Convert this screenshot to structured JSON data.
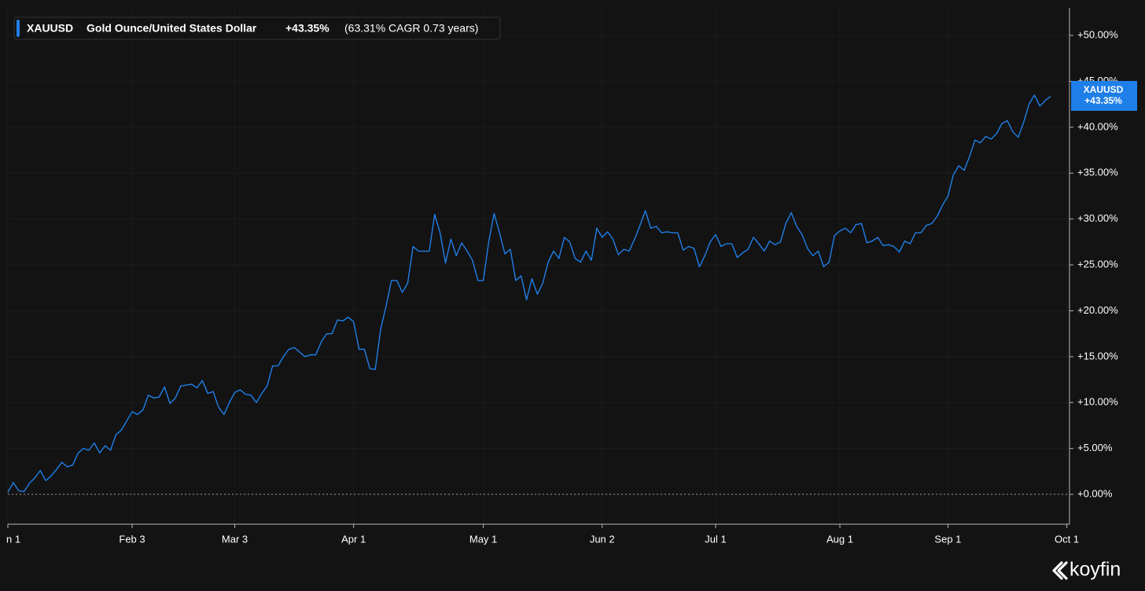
{
  "chart_data": {
    "type": "line",
    "series": [
      {
        "name": "XAUUSD",
        "description": "Gold Ounce/United States Dollar",
        "change_label": "+43.35%",
        "cagr_label": "(63.31% CAGR 0.73 years)",
        "color": "#1f7fe8",
        "values": [
          0.2,
          1.3,
          0.4,
          0.3,
          1.2,
          1.8,
          2.6,
          1.5,
          2.0,
          2.7,
          3.5,
          3.0,
          3.2,
          4.5,
          5.0,
          4.8,
          5.6,
          4.5,
          5.3,
          4.8,
          6.5,
          7.0,
          8.0,
          9.0,
          8.7,
          9.2,
          10.8,
          10.5,
          10.6,
          11.7,
          9.9,
          10.5,
          11.8,
          11.9,
          12.0,
          11.6,
          12.4,
          11.0,
          11.2,
          9.5,
          8.7,
          10.0,
          11.1,
          11.4,
          10.9,
          10.8,
          10.0,
          11.0,
          11.8,
          14.0,
          14.0,
          15.0,
          15.8,
          16.0,
          15.5,
          15.0,
          15.2,
          15.2,
          16.6,
          17.5,
          17.5,
          19.0,
          18.9,
          19.3,
          18.8,
          15.8,
          15.8,
          13.7,
          13.6,
          18.0,
          20.5,
          23.3,
          23.3,
          22.0,
          23.0,
          27.0,
          26.5,
          26.5,
          26.5,
          30.5,
          28.5,
          25.2,
          27.8,
          26.0,
          27.4,
          26.5,
          25.5,
          23.3,
          23.3,
          27.5,
          30.6,
          28.5,
          26.2,
          26.7,
          23.3,
          23.8,
          21.2,
          23.5,
          21.8,
          23.0,
          25.3,
          26.5,
          25.7,
          28.0,
          27.5,
          25.7,
          25.3,
          26.5,
          25.5,
          29.0,
          28.0,
          28.6,
          27.8,
          26.1,
          26.7,
          26.5,
          27.8,
          29.3,
          30.9,
          29.0,
          29.2,
          28.5,
          28.6,
          28.5,
          28.5,
          26.6,
          27.0,
          26.8,
          24.8,
          26.0,
          27.5,
          28.3,
          27.0,
          27.3,
          27.3,
          25.8,
          26.3,
          26.7,
          28.0,
          27.3,
          26.5,
          27.6,
          27.2,
          27.5,
          29.5,
          30.7,
          29.2,
          28.3,
          26.8,
          26.0,
          26.5,
          24.8,
          25.3,
          28.2,
          28.7,
          29.0,
          28.5,
          29.4,
          29.5,
          27.4,
          27.6,
          28.0,
          27.1,
          27.2,
          27.0,
          26.4,
          27.6,
          27.3,
          28.5,
          28.5,
          29.3,
          29.5,
          30.3,
          31.5,
          32.5,
          34.8,
          35.8,
          35.3,
          36.8,
          38.6,
          38.3,
          39.0,
          38.7,
          39.3,
          40.4,
          40.7,
          39.5,
          38.9,
          40.5,
          42.5,
          43.5,
          42.3,
          42.9,
          43.35
        ]
      }
    ],
    "xlim": [
      0,
      196.5
    ],
    "xticks": [
      {
        "value": 0,
        "label": "n 1"
      },
      {
        "value": 23,
        "label": "Feb 3"
      },
      {
        "value": 42,
        "label": "Mar 3"
      },
      {
        "value": 64,
        "label": "Apr 1"
      },
      {
        "value": 88,
        "label": "May 1"
      },
      {
        "value": 110,
        "label": "Jun 2"
      },
      {
        "value": 131,
        "label": "Jul 1"
      },
      {
        "value": 154,
        "label": "Aug 1"
      },
      {
        "value": 174,
        "label": "Sep 1"
      },
      {
        "value": 196,
        "label": "Oct 1"
      }
    ],
    "ylim": [
      -3.25,
      53
    ],
    "yticks": [
      {
        "value": 0,
        "label": "+0.00%"
      },
      {
        "value": 5,
        "label": "+5.00%"
      },
      {
        "value": 10,
        "label": "+10.00%"
      },
      {
        "value": 15,
        "label": "+15.00%"
      },
      {
        "value": 20,
        "label": "+20.00%"
      },
      {
        "value": 25,
        "label": "+25.00%"
      },
      {
        "value": 30,
        "label": "+30.00%"
      },
      {
        "value": 35,
        "label": "+35.00%"
      },
      {
        "value": 40,
        "label": "+40.00%"
      },
      {
        "value": 45,
        "label": "+45.00%"
      },
      {
        "value": 50,
        "label": "+50.00%"
      }
    ],
    "grid": true,
    "baseline": 0,
    "brand": "koyfin"
  }
}
